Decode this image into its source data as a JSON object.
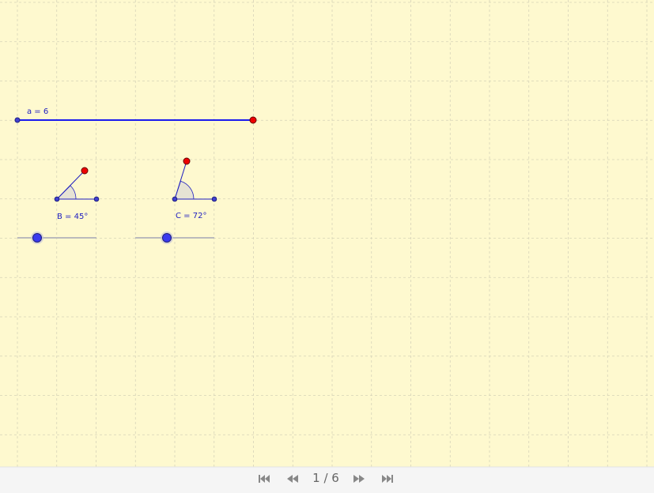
{
  "segment": {
    "label": "a = 6"
  },
  "angles": [
    {
      "label": "B = 45°"
    },
    {
      "label": "C = 72°"
    }
  ],
  "navigation": {
    "page": "1 / 6"
  }
}
